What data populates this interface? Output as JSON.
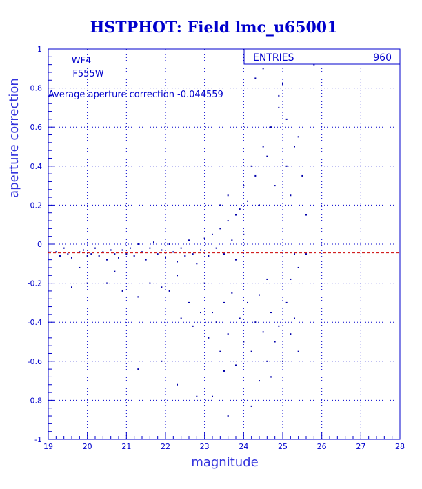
{
  "chart_data": {
    "type": "scatter",
    "title": "HSTPHOT: Field lmc_u65001",
    "xlabel": "magnitude",
    "ylabel": "aperture correction",
    "xlim": [
      19,
      28
    ],
    "ylim": [
      -1,
      1
    ],
    "x_ticks": [
      "19",
      "20",
      "21",
      "22",
      "23",
      "24",
      "25",
      "26",
      "27",
      "28"
    ],
    "y_ticks": [
      "1",
      "0.8",
      "0.6",
      "0.4",
      "0.2",
      "0",
      "-0.2",
      "-0.4",
      "-0.6",
      "-0.8",
      "-1"
    ],
    "grid": "dotted",
    "annotations": {
      "chip": "WF4",
      "filter": "F555W",
      "average_text": "Average aperture correction -0.044559"
    },
    "stats": {
      "label": "ENTRIES",
      "value": "960"
    },
    "reference_line_y": -0.044559,
    "colors": {
      "title": "#0000cc",
      "points": "#0000aa",
      "axes": "#0000cc",
      "reference": "#cc0000"
    },
    "points": [
      [
        19.2,
        -0.04
      ],
      [
        19.3,
        -0.06
      ],
      [
        19.4,
        -0.02
      ],
      [
        19.5,
        -0.05
      ],
      [
        19.6,
        -0.07
      ],
      [
        19.8,
        -0.04
      ],
      [
        19.9,
        -0.03
      ],
      [
        20.0,
        -0.06
      ],
      [
        20.1,
        -0.05
      ],
      [
        20.2,
        -0.02
      ],
      [
        20.3,
        -0.06
      ],
      [
        20.4,
        -0.04
      ],
      [
        20.5,
        -0.08
      ],
      [
        20.6,
        -0.03
      ],
      [
        20.7,
        -0.05
      ],
      [
        20.8,
        -0.07
      ],
      [
        20.9,
        -0.03
      ],
      [
        21.0,
        -0.05
      ],
      [
        21.1,
        -0.02
      ],
      [
        21.2,
        -0.06
      ],
      [
        21.3,
        0.0
      ],
      [
        21.4,
        -0.04
      ],
      [
        21.5,
        -0.08
      ],
      [
        21.6,
        -0.02
      ],
      [
        21.7,
        0.01
      ],
      [
        21.8,
        -0.05
      ],
      [
        21.9,
        -0.03
      ],
      [
        22.0,
        -0.07
      ],
      [
        22.1,
        0.0
      ],
      [
        22.2,
        -0.04
      ],
      [
        22.3,
        -0.09
      ],
      [
        22.4,
        -0.02
      ],
      [
        22.5,
        -0.06
      ],
      [
        22.6,
        0.02
      ],
      [
        22.7,
        -0.05
      ],
      [
        22.8,
        -0.1
      ],
      [
        22.9,
        -0.03
      ],
      [
        23.0,
        0.03
      ],
      [
        23.1,
        -0.06
      ],
      [
        23.2,
        0.05
      ],
      [
        23.3,
        -0.02
      ],
      [
        23.4,
        0.08
      ],
      [
        23.5,
        -0.05
      ],
      [
        23.6,
        0.12
      ],
      [
        23.7,
        0.02
      ],
      [
        23.8,
        -0.08
      ],
      [
        23.9,
        0.18
      ],
      [
        24.0,
        0.05
      ],
      [
        19.6,
        -0.22
      ],
      [
        19.8,
        -0.12
      ],
      [
        20.0,
        -0.2
      ],
      [
        20.5,
        -0.2
      ],
      [
        20.7,
        -0.14
      ],
      [
        20.9,
        -0.24
      ],
      [
        21.3,
        -0.27
      ],
      [
        21.6,
        -0.2
      ],
      [
        21.9,
        -0.22
      ],
      [
        22.1,
        -0.24
      ],
      [
        22.3,
        -0.16
      ],
      [
        22.4,
        -0.38
      ],
      [
        22.6,
        -0.3
      ],
      [
        22.7,
        -0.42
      ],
      [
        22.9,
        -0.35
      ],
      [
        23.0,
        -0.2
      ],
      [
        23.1,
        -0.48
      ],
      [
        23.2,
        -0.35
      ],
      [
        23.3,
        -0.4
      ],
      [
        23.4,
        -0.55
      ],
      [
        23.5,
        -0.3
      ],
      [
        23.6,
        -0.46
      ],
      [
        23.7,
        -0.25
      ],
      [
        23.8,
        -0.62
      ],
      [
        23.9,
        -0.38
      ],
      [
        24.0,
        -0.5
      ],
      [
        24.1,
        -0.3
      ],
      [
        24.2,
        -0.55
      ],
      [
        24.3,
        -0.4
      ],
      [
        24.4,
        -0.7
      ],
      [
        24.5,
        -0.45
      ],
      [
        24.6,
        -0.6
      ],
      [
        24.7,
        -0.35
      ],
      [
        24.8,
        -0.5
      ],
      [
        24.9,
        -0.42
      ],
      [
        25.0,
        -0.6
      ],
      [
        25.1,
        -0.3
      ],
      [
        25.2,
        -0.46
      ],
      [
        25.3,
        -0.38
      ],
      [
        25.4,
        -0.55
      ],
      [
        22.3,
        -0.72
      ],
      [
        22.8,
        -0.78
      ],
      [
        23.2,
        -0.78
      ],
      [
        23.5,
        -0.65
      ],
      [
        23.6,
        -0.88
      ],
      [
        24.2,
        -0.83
      ],
      [
        24.7,
        -0.68
      ],
      [
        21.3,
        -0.64
      ],
      [
        21.9,
        -0.6
      ],
      [
        23.4,
        0.2
      ],
      [
        23.6,
        0.25
      ],
      [
        23.8,
        0.15
      ],
      [
        24.0,
        0.3
      ],
      [
        24.1,
        0.22
      ],
      [
        24.2,
        0.4
      ],
      [
        24.3,
        0.35
      ],
      [
        24.4,
        0.2
      ],
      [
        24.5,
        0.5
      ],
      [
        24.6,
        0.45
      ],
      [
        24.7,
        0.6
      ],
      [
        24.8,
        0.3
      ],
      [
        24.9,
        0.7
      ],
      [
        25.0,
        0.82
      ],
      [
        25.1,
        0.4
      ],
      [
        25.2,
        0.25
      ],
      [
        25.3,
        0.5
      ],
      [
        25.4,
        0.55
      ],
      [
        25.5,
        0.35
      ],
      [
        25.6,
        0.15
      ],
      [
        25.2,
        -0.18
      ],
      [
        25.3,
        -0.05
      ],
      [
        25.4,
        -0.12
      ],
      [
        25.6,
        -0.05
      ],
      [
        24.3,
        0.85
      ],
      [
        24.5,
        0.9
      ],
      [
        24.9,
        0.76
      ],
      [
        25.1,
        0.64
      ],
      [
        25.8,
        0.92
      ],
      [
        24.6,
        -0.18
      ],
      [
        24.4,
        -0.26
      ]
    ]
  }
}
